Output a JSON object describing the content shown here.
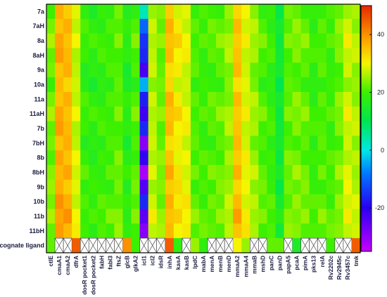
{
  "chart_data": {
    "type": "heatmap",
    "title": "",
    "rows": [
      "7a",
      "7aH",
      "8a",
      "8aH",
      "9a",
      "10a",
      "11a",
      "11aH",
      "7b",
      "7bH",
      "8b",
      "8bH",
      "9b",
      "10b",
      "11b",
      "11bH"
    ],
    "ligand_row_label": "cognate ligand",
    "columns": [
      "ctlE",
      "cmaA1",
      "cmaA2",
      "dfrA",
      "dosR pocket1",
      "dosR pocket2",
      "fabH",
      "fabI3",
      "ftsZ",
      "glcB",
      "glkA2",
      "icl1",
      "icl2",
      "idsR",
      "inhA",
      "kasA",
      "kasB",
      "lpdC",
      "mabA",
      "menA",
      "menB",
      "menD",
      "mmaA2",
      "mmaA4",
      "mmaB",
      "mshD",
      "panC",
      "panD",
      "papA5",
      "pcaA",
      "pimA",
      "pks13",
      "relA",
      "Rv2202c",
      "Rv2945c",
      "Rv3457c",
      "tmk"
    ],
    "value_range": [
      -35,
      50
    ],
    "colorbar_ticks": [
      40,
      20,
      0,
      -20
    ],
    "column_base_values": [
      22,
      36,
      35,
      27,
      18,
      17,
      18,
      19,
      21,
      16,
      20,
      -10,
      26,
      22,
      34,
      30,
      28,
      20,
      19,
      20,
      21,
      24,
      34,
      28,
      24,
      20,
      18,
      12,
      21,
      22,
      21,
      18,
      20,
      19,
      22,
      27,
      25
    ],
    "row_offsets": [
      0,
      1,
      2,
      1,
      0,
      -1,
      1,
      2,
      1,
      0,
      1,
      2,
      1,
      2,
      3,
      2
    ],
    "icl1_column_values": [
      2,
      -8,
      -15,
      -18,
      -22,
      -5,
      -15,
      -22,
      -18,
      -28,
      -22,
      -30,
      -24,
      -18,
      -24,
      -30
    ],
    "cognate_ligand": [
      22,
      "none",
      "none",
      45,
      "none",
      "none",
      "none",
      "none",
      "none",
      40,
      20,
      "none",
      "none",
      "none",
      45,
      18,
      "none",
      25,
      18,
      "none",
      "none",
      "none",
      30,
      25,
      "none",
      "none",
      22,
      22,
      "none",
      15,
      "none",
      "none",
      "none",
      20,
      "none",
      "none",
      45
    ]
  }
}
